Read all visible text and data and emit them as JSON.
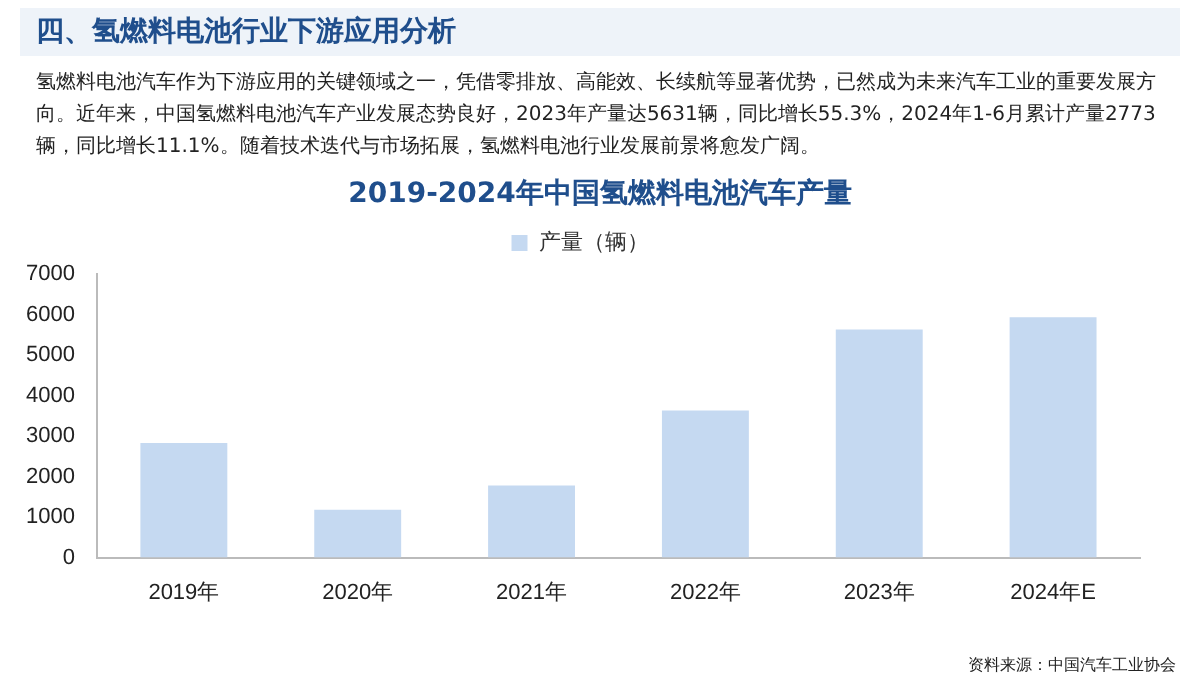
{
  "chart_data": {
    "type": "bar",
    "title": "2019-2024年中国氢燃料电池汽车产量",
    "annotations": [
      "四、氢燃料电池行业下游应用分析",
      "氢燃料电池汽车作为下游应用的关键领域之一，凭借零排放、高能效、长续航等显著优势，已然成为未来汽车工业的重要发展方向。近年来，中国氢燃料电池汽车产业发展态势良好，2023年产量达5631辆，同比增长55.3%，2024年1-6月累计产量2773辆，同比增长11.1%。随着技术迭代与市场拓展，氢燃料电池行业发展前景将愈发广阔。",
      "资料来源：中国汽车工业协会"
    ],
    "categories": [
      "2019年",
      "2020年",
      "2021年",
      "2022年",
      "2023年",
      "2024年E"
    ],
    "series": [
      {
        "name": "产量（辆）",
        "color": "#c5d9f1",
        "values": [
          2830,
          1180,
          1780,
          3630,
          5630,
          5930
        ]
      }
    ],
    "ylim": [
      0,
      7000
    ],
    "yticks": [
      0,
      1000,
      2000,
      3000,
      4000,
      5000,
      6000,
      7000
    ],
    "grid": false,
    "legend": "top"
  }
}
